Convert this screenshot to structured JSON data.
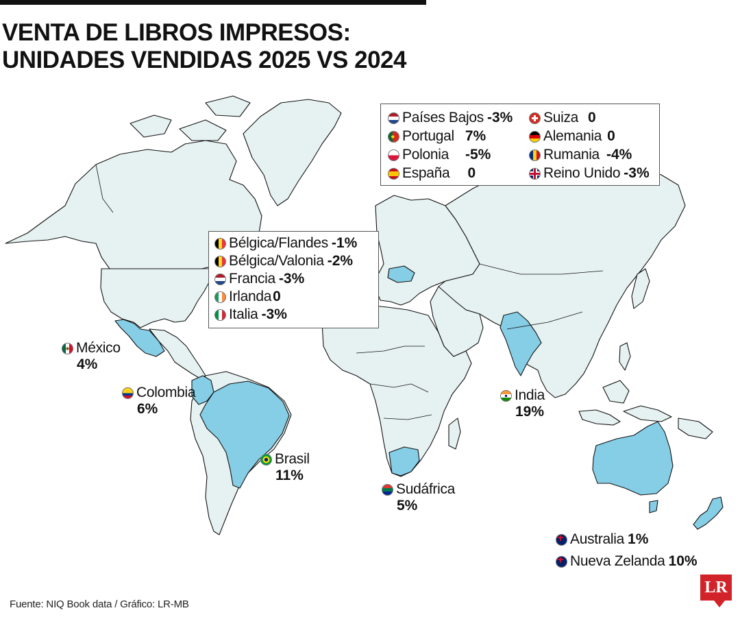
{
  "title": {
    "line1": "VENTA DE LIBROS IMPRESOS:",
    "line2": "UNIDADES VENDIDAS 2025 VS 2024"
  },
  "legend_europe_north": {
    "items": [
      {
        "name": "Países Bajos",
        "value": "-3%",
        "flag": "netherlands-flag"
      },
      {
        "name": "Portugal",
        "value": "7%",
        "flag": "portugal-flag"
      },
      {
        "name": "Polonia",
        "value": "-5%",
        "flag": "poland-flag"
      },
      {
        "name": "España",
        "value": "0",
        "flag": "spain-flag"
      },
      {
        "name": "Suiza",
        "value": "0",
        "flag": "switzerland-flag"
      },
      {
        "name": "Alemania",
        "value": "0",
        "flag": "germany-flag"
      },
      {
        "name": "Rumania",
        "value": "-4%",
        "flag": "romania-flag"
      },
      {
        "name": "Reino Unido",
        "value": "-3%",
        "flag": "uk-flag"
      }
    ]
  },
  "legend_europe_west": {
    "items": [
      {
        "name": "Bélgica/Flandes",
        "value": "-1%",
        "flag": "belgium-flag"
      },
      {
        "name": "Bélgica/Valonia",
        "value": "-2%",
        "flag": "belgium-flag"
      },
      {
        "name": "Francia",
        "value": "-3%",
        "flag": "france-flag"
      },
      {
        "name": "Irlanda",
        "value": "0",
        "flag": "ireland-flag"
      },
      {
        "name": "Italia",
        "value": "-3%",
        "flag": "italy-flag"
      }
    ]
  },
  "countries": {
    "mexico": {
      "name": "México",
      "value": "4%",
      "flag": "mexico-flag"
    },
    "colombia": {
      "name": "Colombia",
      "value": "6%",
      "flag": "colombia-flag"
    },
    "brasil": {
      "name": "Brasil",
      "value": "11%",
      "flag": "brazil-flag"
    },
    "sudafrica": {
      "name": "Sudáfrica",
      "value": "5%",
      "flag": "south-africa-flag"
    },
    "india": {
      "name": "India",
      "value": "19%",
      "flag": "india-flag"
    },
    "australia": {
      "name": "Australia",
      "value": "1%",
      "flag": "australia-flag"
    },
    "nueva_zelanda": {
      "name": "Nueva Zelanda",
      "value": "10%",
      "flag": "new-zealand-flag"
    }
  },
  "map": {
    "land_color": "#e6f2f1",
    "highlight_color": "#86cde6",
    "border_color": "#111111"
  },
  "source": "Fuente: NIQ Book data / Gráfico: LR-MB",
  "logo": "LR"
}
